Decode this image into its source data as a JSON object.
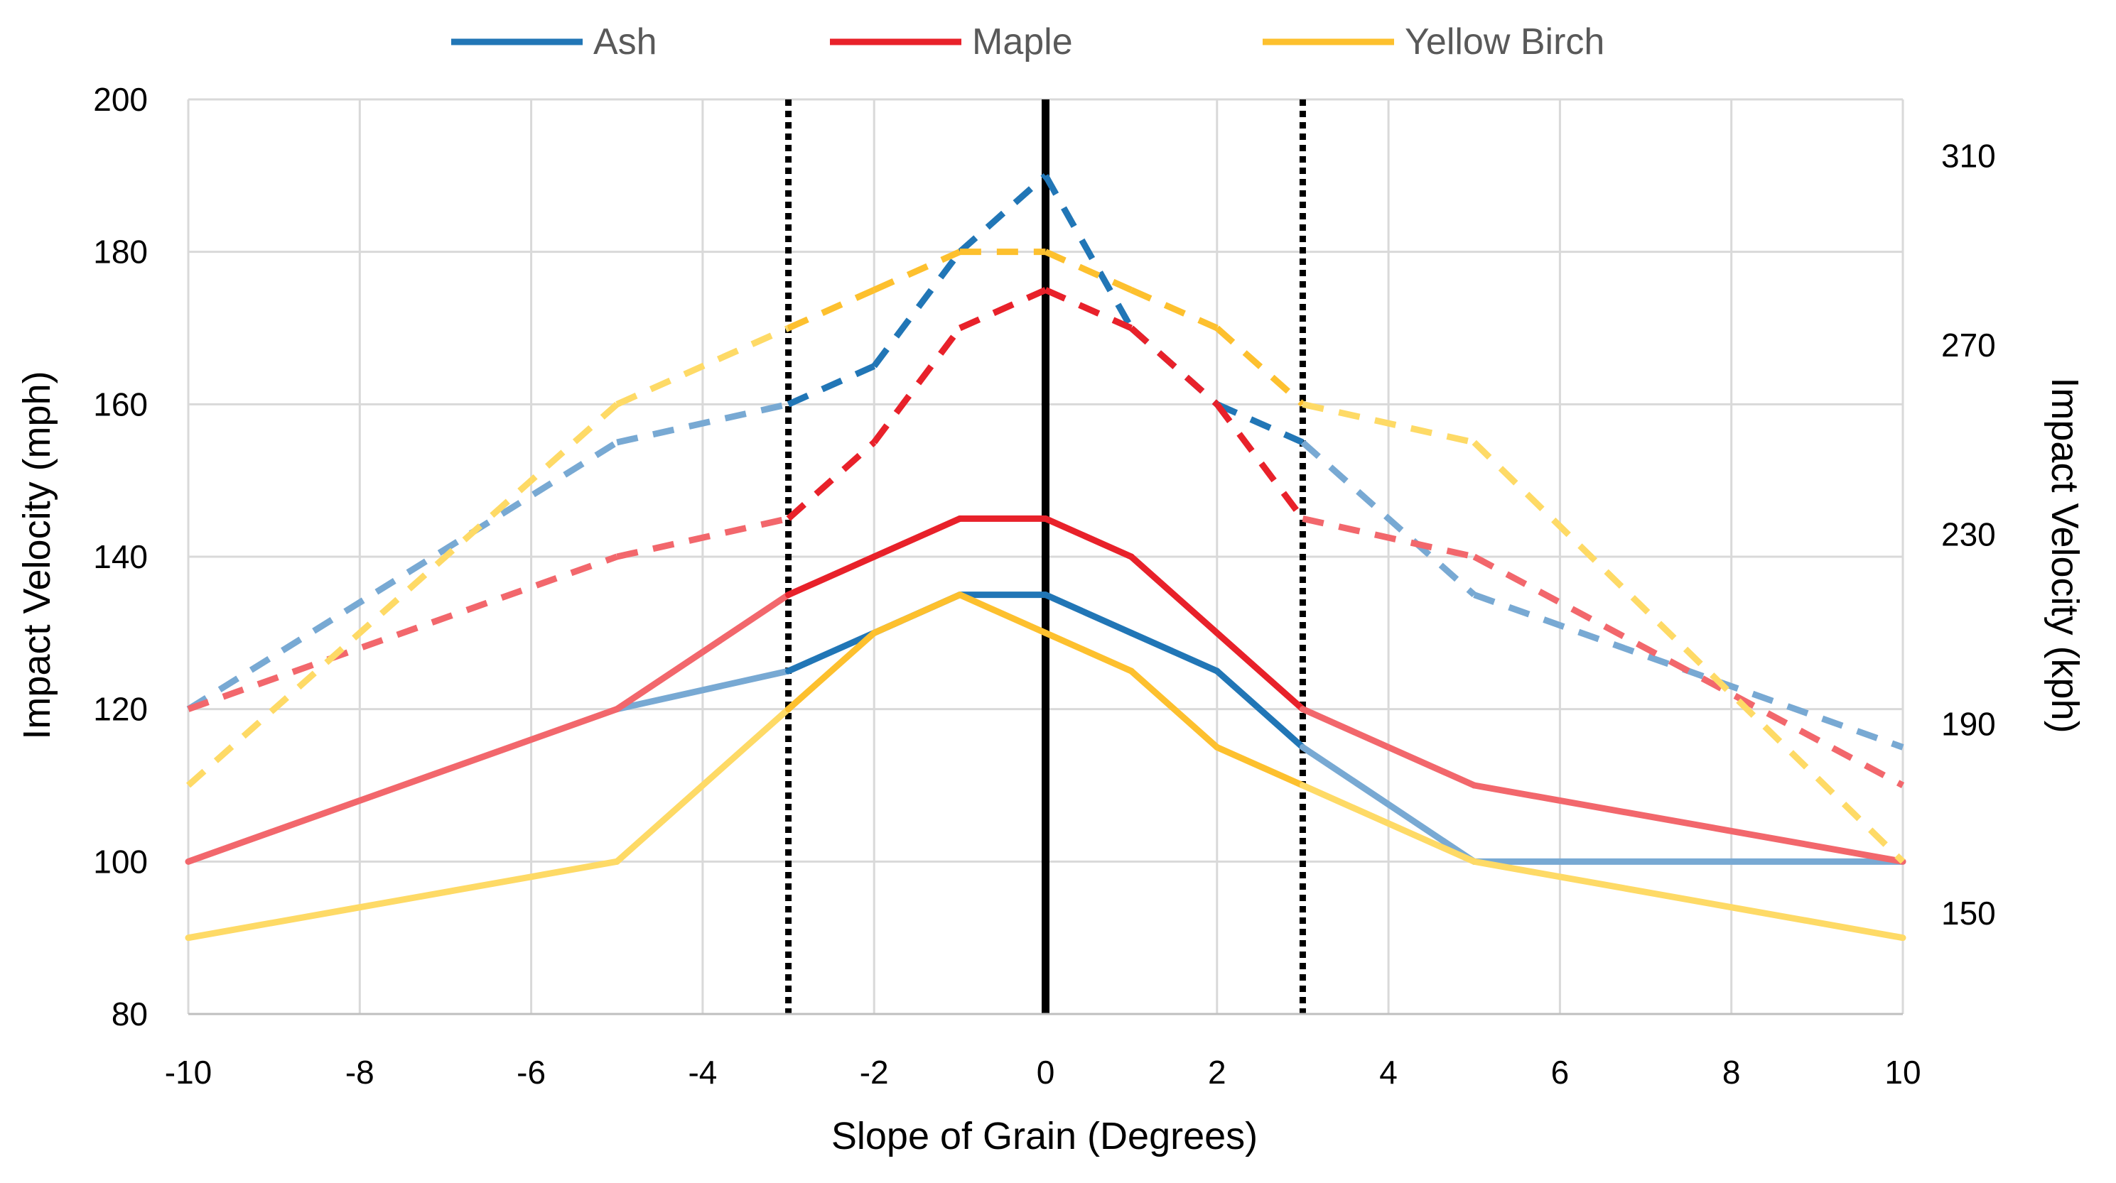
{
  "chart_data": {
    "type": "line",
    "title": "",
    "xlabel": "Slope of Grain (Degrees)",
    "ylabel": "Impact Velocity (mph)",
    "y2label": "Impact Velocity (kph)",
    "xlim": [
      -10,
      10
    ],
    "ylim": [
      80,
      200
    ],
    "y2lim": [
      128.7,
      321.9
    ],
    "x_ticks": [
      -10,
      -8,
      -6,
      -4,
      -2,
      0,
      2,
      4,
      6,
      8,
      10
    ],
    "y_ticks": [
      80,
      100,
      120,
      140,
      160,
      180,
      200
    ],
    "y2_ticks": [
      150,
      190,
      230,
      270,
      310
    ],
    "grid": true,
    "legend_position": "top",
    "vertical_lines": [
      {
        "x": -3,
        "style": "dotted"
      },
      {
        "x": 0,
        "style": "solid"
      },
      {
        "x": 3,
        "style": "dotted"
      }
    ],
    "legend": [
      {
        "name": "Ash",
        "color": "#2176B6"
      },
      {
        "name": "Maple",
        "color": "#E8212A"
      },
      {
        "name": "Yellow Birch",
        "color": "#FDC02E"
      }
    ],
    "series": [
      {
        "name": "Ash",
        "style": "solid",
        "color": "#2176B6",
        "light_color": "#78A9D3",
        "x": [
          -5,
          -3,
          -2,
          -1,
          0,
          1,
          2,
          3,
          5,
          10
        ],
        "values": [
          120,
          125,
          130,
          135,
          135,
          130,
          125,
          115,
          100,
          100
        ]
      },
      {
        "name": "Ash",
        "style": "dashed",
        "color": "#2176B6",
        "light_color": "#78A9D3",
        "x": [
          -10,
          -5,
          -3,
          -2,
          -1,
          0,
          1,
          2,
          3,
          5,
          10
        ],
        "values": [
          120,
          155,
          160,
          165,
          180,
          190,
          170,
          160,
          155,
          135,
          115
        ]
      },
      {
        "name": "Maple",
        "style": "solid",
        "color": "#E8212A",
        "light_color": "#F2676C",
        "x": [
          -10,
          -5,
          -3,
          -2,
          -1,
          0,
          1,
          2,
          3,
          5,
          10
        ],
        "values": [
          100,
          120,
          135,
          140,
          145,
          145,
          140,
          130,
          120,
          110,
          100
        ]
      },
      {
        "name": "Maple",
        "style": "dashed",
        "color": "#E8212A",
        "light_color": "#F2676C",
        "x": [
          -10,
          -5,
          -3,
          -2,
          -1,
          0,
          1,
          2,
          3,
          5,
          10
        ],
        "values": [
          120,
          140,
          145,
          155,
          170,
          175,
          170,
          160,
          145,
          140,
          110
        ]
      },
      {
        "name": "Yellow Birch",
        "style": "solid",
        "color": "#FDC02E",
        "light_color": "#FEDA66",
        "x": [
          -10,
          -5,
          -3,
          -2,
          -1,
          0,
          1,
          2,
          3,
          5,
          10
        ],
        "values": [
          90,
          100,
          120,
          130,
          135,
          130,
          125,
          115,
          110,
          100,
          90
        ]
      },
      {
        "name": "Yellow Birch",
        "style": "dashed",
        "color": "#FDC02E",
        "light_color": "#FEDA66",
        "x": [
          -10,
          -5,
          -3,
          -2,
          -1,
          0,
          1,
          2,
          3,
          5,
          10
        ],
        "values": [
          110,
          160,
          170,
          175,
          180,
          180,
          175,
          170,
          160,
          155,
          100
        ]
      }
    ]
  }
}
